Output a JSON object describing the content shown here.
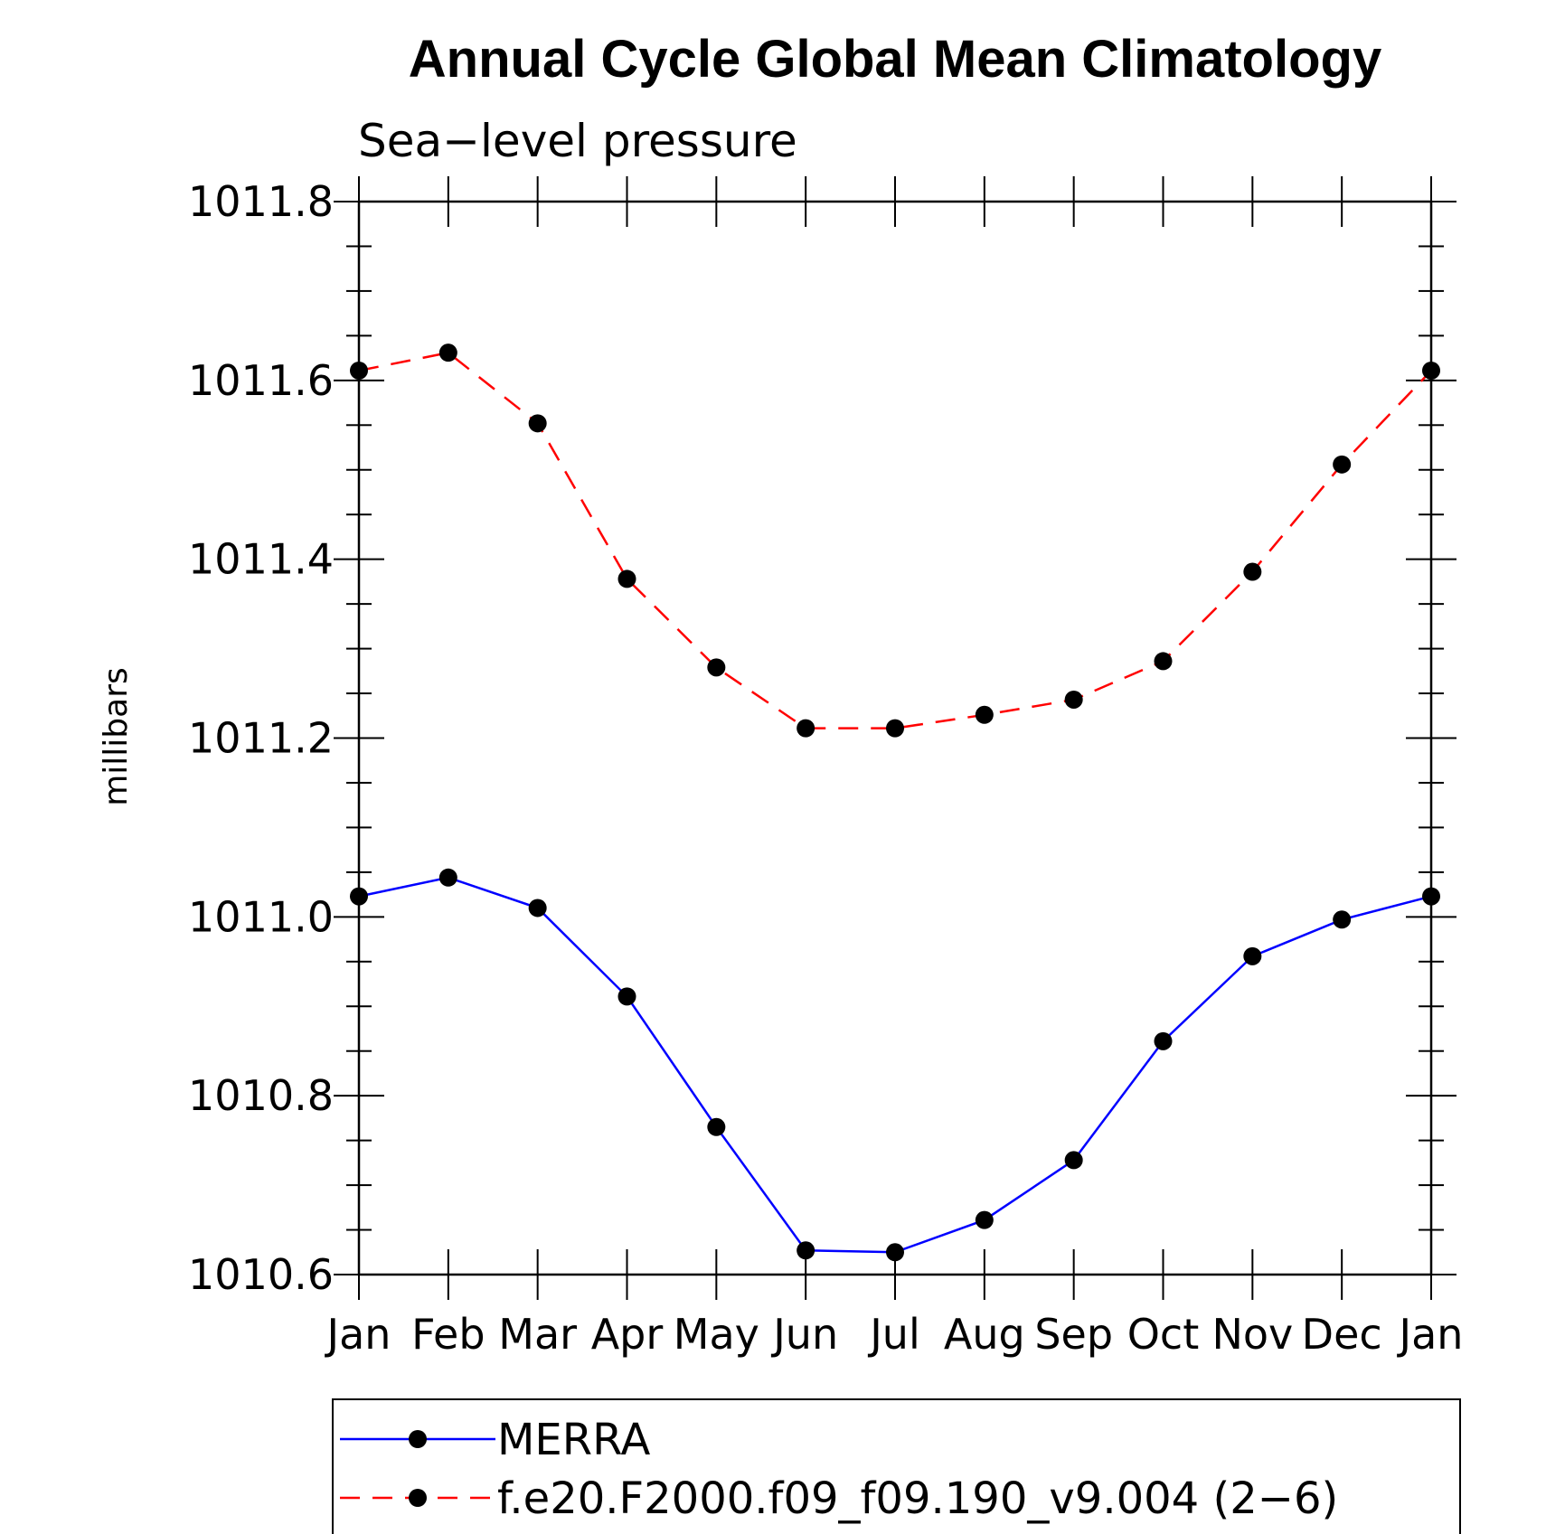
{
  "chart_data": {
    "type": "line",
    "title": "Annual Cycle Global Mean Climatology",
    "subtitle": "Sea−level pressure",
    "xlabel": "",
    "ylabel": "millibars",
    "categories": [
      "Jan",
      "Feb",
      "Mar",
      "Apr",
      "May",
      "Jun",
      "Jul",
      "Aug",
      "Sep",
      "Oct",
      "Nov",
      "Dec",
      "Jan"
    ],
    "ylim": [
      1010.6,
      1011.8
    ],
    "yticks": [
      1010.6,
      1010.8,
      1011.0,
      1011.2,
      1011.4,
      1011.6,
      1011.8
    ],
    "ytick_labels": [
      "1010.6",
      "1010.8",
      "1011.0",
      "1011.2",
      "1011.4",
      "1011.6",
      "1011.8"
    ],
    "grid": false,
    "legend_position": "bottom",
    "series": [
      {
        "name": "MERRA",
        "color": "#0000ff",
        "dash": "solid",
        "values": [
          1011.023,
          1011.044,
          1011.01,
          1010.911,
          1010.765,
          1010.627,
          1010.625,
          1010.661,
          1010.728,
          1010.861,
          1010.956,
          1010.997,
          1011.023
        ]
      },
      {
        "name": "f.e20.F2000.f09_f09.190_v9.004 (2−6)",
        "color": "#ff0000",
        "dash": "dashed",
        "values": [
          1011.611,
          1011.631,
          1011.552,
          1011.378,
          1011.279,
          1011.211,
          1011.211,
          1011.226,
          1011.243,
          1011.286,
          1011.386,
          1011.506,
          1011.611
        ]
      }
    ]
  }
}
